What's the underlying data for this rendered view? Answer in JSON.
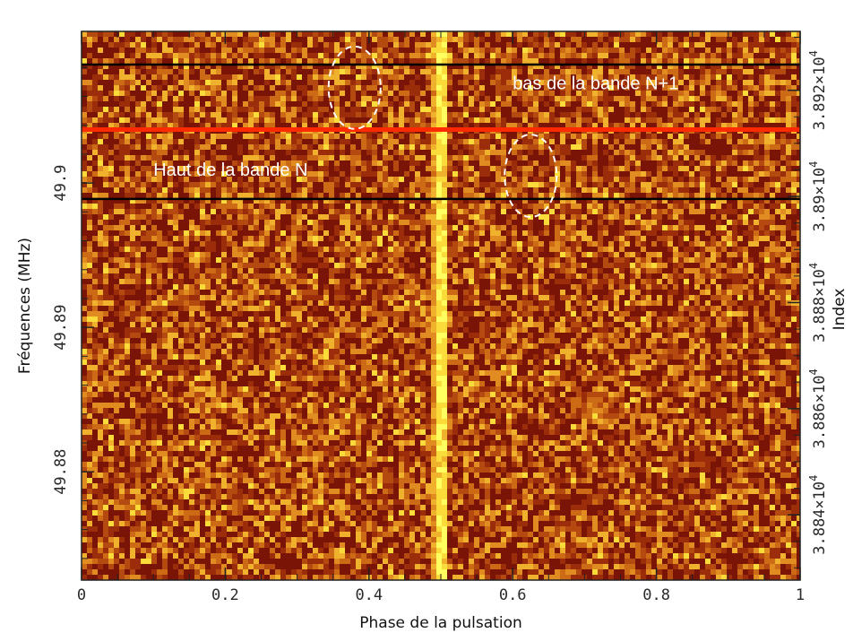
{
  "chart_data": {
    "type": "heatmap",
    "title": "",
    "xlabel": "Phase de la pulsation",
    "ylabel": "Fréquences (MHz)",
    "y2label": "Index",
    "xlim": [
      0,
      1
    ],
    "ylim": [
      49.8725,
      49.9105
    ],
    "y2lim": [
      38827.7,
      38931.1
    ],
    "x_ticks": [
      0,
      0.2,
      0.4,
      0.6,
      0.8,
      1
    ],
    "x_tick_labels": [
      "0",
      "0.2",
      "0.4",
      "0.6",
      "0.8",
      "1"
    ],
    "y_ticks": [
      49.88,
      49.89,
      49.9
    ],
    "y_tick_labels": [
      "49.88",
      "49.89",
      "49.9"
    ],
    "y2_ticks": [
      38840,
      38860,
      38880,
      38900,
      38920
    ],
    "y2_tick_labels": [
      {
        "mantissa": "3.884×10",
        "exp": "4"
      },
      {
        "mantissa": "3.886×10",
        "exp": "4"
      },
      {
        "mantissa": "3.888×10",
        "exp": "4"
      },
      {
        "mantissa": "3.89×10",
        "exp": "4"
      },
      {
        "mantissa": "3.892×10",
        "exp": "4"
      }
    ],
    "colormap": [
      "#7a1406",
      "#9c2d0a",
      "#b54a10",
      "#cd6a16",
      "#e08c20",
      "#f0b22c",
      "#fadb3a",
      "#ffff60"
    ],
    "pulse": {
      "phase": 0.5,
      "description": "bright vertical band"
    },
    "band_edges": {
      "black_lines_frequency_mhz": [
        49.9082,
        49.8989
      ],
      "red_line_frequency_mhz": 49.9037,
      "line_colors": {
        "black": "#000000",
        "red": "#ff2a00"
      }
    },
    "annotations": [
      {
        "text": "bas de la bande N+1",
        "x": 0.6,
        "y": 49.9065
      },
      {
        "text": "Haut de la bande N",
        "x": 0.1,
        "y": 49.9005
      }
    ],
    "highlights": [
      {
        "center_phase": 0.38,
        "center_frequency_mhz": 49.9066,
        "style": "dashed ellipse",
        "color": "#ffffff"
      },
      {
        "center_phase": 0.625,
        "center_frequency_mhz": 49.9005,
        "style": "dashed ellipse",
        "color": "#ffffff"
      }
    ],
    "grid": false
  }
}
